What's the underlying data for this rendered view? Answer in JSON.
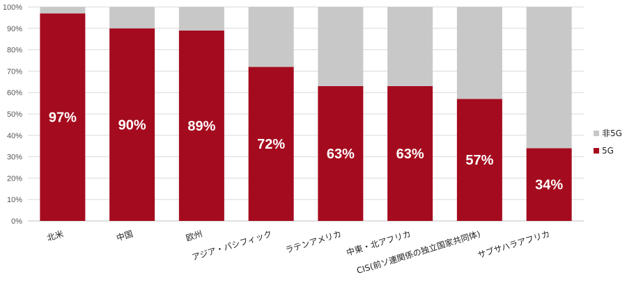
{
  "chart_data": {
    "type": "bar",
    "stacked": true,
    "categories": [
      "北米",
      "中国",
      "欧州",
      "アジア・パシフィック",
      "ラテンアメリカ",
      "中東・北アフリカ",
      "CIS(前ソ連関係の独立国家共同体)",
      "サブサハラアフリカ"
    ],
    "series": [
      {
        "name": "5G",
        "values": [
          97,
          90,
          89,
          72,
          63,
          63,
          57,
          34
        ],
        "color": "#a50b1e"
      },
      {
        "name": "非5G",
        "values": [
          3,
          10,
          11,
          28,
          37,
          37,
          43,
          66
        ],
        "color": "#c8c8c8"
      }
    ],
    "data_labels": [
      "97%",
      "90%",
      "89%",
      "72%",
      "63%",
      "63%",
      "57%",
      "34%"
    ],
    "yticks": [
      "0%",
      "10%",
      "20%",
      "30%",
      "40%",
      "50%",
      "60%",
      "70%",
      "80%",
      "90%",
      "100%"
    ],
    "ylim": [
      0,
      100
    ],
    "grid": true,
    "legend": {
      "position": "right",
      "entries": [
        "非5G",
        "5G"
      ]
    },
    "title": "",
    "xlabel": "",
    "ylabel": ""
  }
}
